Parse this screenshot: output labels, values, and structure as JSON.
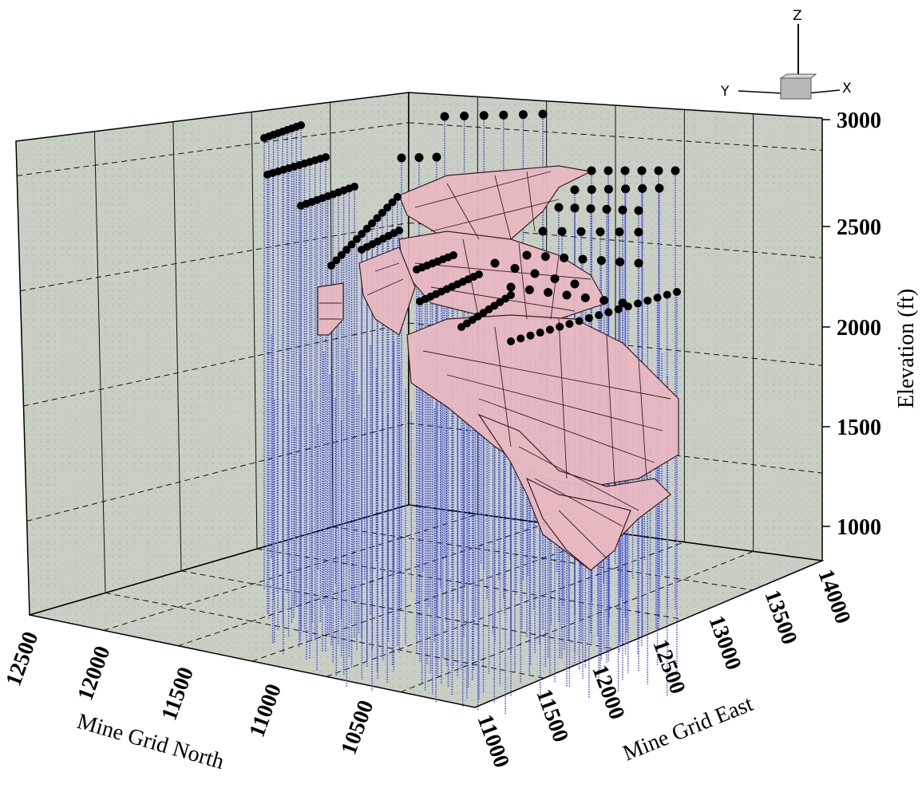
{
  "chart_data": {
    "type": "scatter",
    "projection": "3d",
    "axes": {
      "x": {
        "label": "Mine Grid North",
        "range": [
          10000,
          12500
        ],
        "ticks": [
          "12500",
          "12000",
          "11500",
          "11000",
          "10500"
        ]
      },
      "y": {
        "label": "Mine Grid East",
        "range": [
          11000,
          14000
        ],
        "ticks": [
          "11000",
          "11500",
          "12000",
          "12500",
          "13000",
          "13500",
          "14000"
        ]
      },
      "z": {
        "label": "Elevation (ft)",
        "range": [
          750,
          3000
        ],
        "ticks": [
          "1000",
          "1500",
          "2000",
          "2500",
          "3000"
        ]
      }
    },
    "grid": true,
    "background_color": "#c8d3c5",
    "series": [
      {
        "color": "#3340e6",
        "marker_color": "#000000"
      },
      {
        "color": "#e8b8c0",
        "edge_color": "#3a1e24"
      }
    ],
    "orientation_triad": {
      "z": "Z",
      "x": "X",
      "y": "Y"
    }
  }
}
